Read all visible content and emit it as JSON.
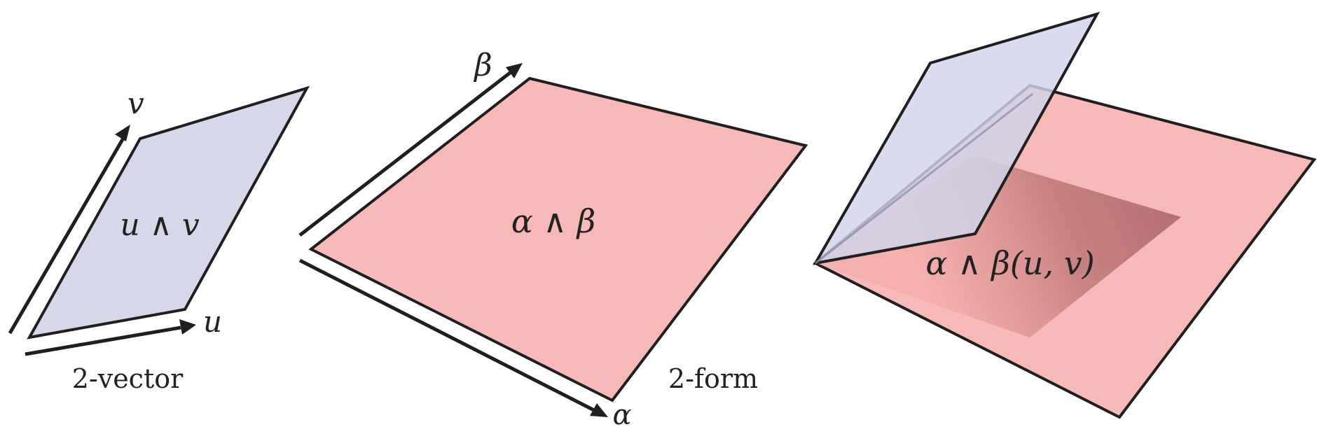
{
  "figure": {
    "colors": {
      "ink": "#1f1f1f",
      "vector_fill": "#d4d8e8",
      "form_fill": "#f7b8b8",
      "shadow_dark": "#b06c6c",
      "shadow_light": "#f2a8a8"
    },
    "panels": [
      {
        "id": "two-vector",
        "caption": "2-vector",
        "area_label": "u ∧ v",
        "vectors": [
          {
            "label": "u",
            "icon": "arrow-u-icon"
          },
          {
            "label": "v",
            "icon": "arrow-v-icon"
          }
        ]
      },
      {
        "id": "two-form",
        "caption": "2-form",
        "area_label": "α ∧ β",
        "vectors": [
          {
            "label": "α",
            "icon": "arrow-alpha-icon"
          },
          {
            "label": "β",
            "icon": "arrow-beta-icon"
          }
        ]
      },
      {
        "id": "evaluation",
        "area_label": "α ∧ β(u, v)"
      }
    ]
  }
}
